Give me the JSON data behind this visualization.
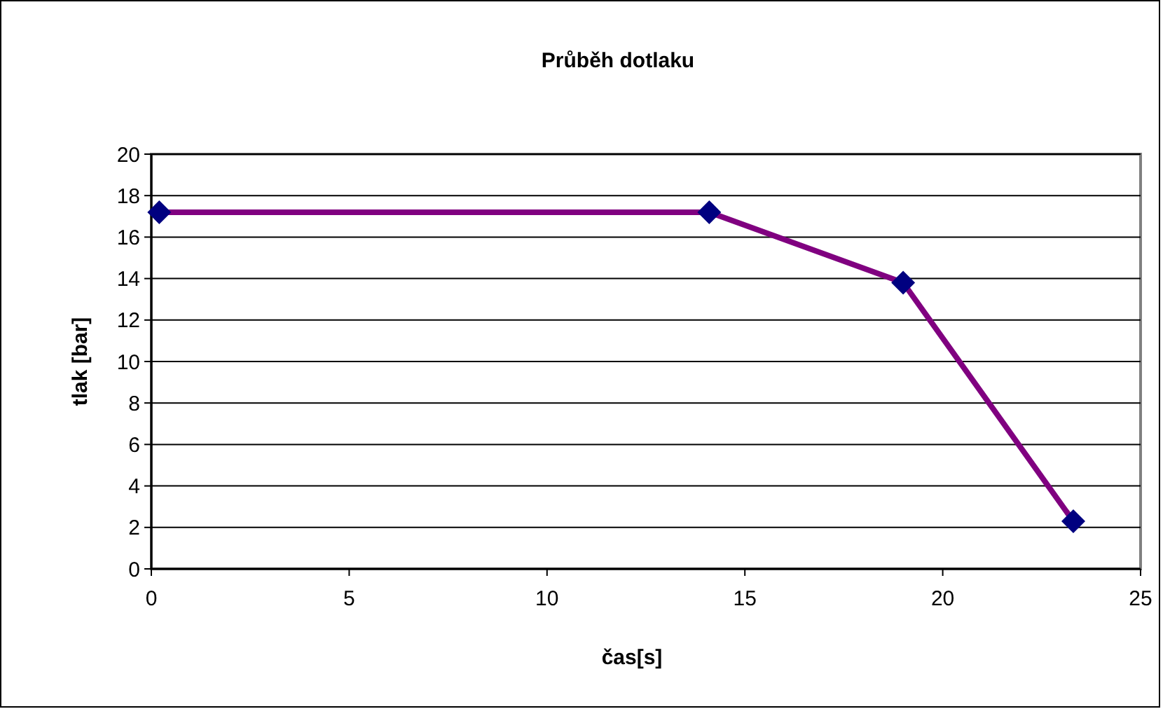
{
  "chart_data": {
    "type": "line",
    "title": "Průběh dotlaku",
    "xlabel": "čas[s]",
    "ylabel": "tlak [bar]",
    "x": [
      0.2,
      14.1,
      19.0,
      23.3
    ],
    "series": [
      {
        "color": "#800080",
        "values": [
          17.2,
          17.2,
          13.8,
          2.3
        ]
      }
    ],
    "xlim": [
      0,
      25
    ],
    "xticks": [
      0,
      5,
      10,
      15,
      20,
      25
    ],
    "ylim": [
      0,
      20
    ],
    "yticks": [
      0,
      2,
      4,
      6,
      8,
      10,
      12,
      14,
      16,
      18,
      20
    ],
    "grid": "y",
    "marker": "diamond",
    "line_style": "solid"
  }
}
